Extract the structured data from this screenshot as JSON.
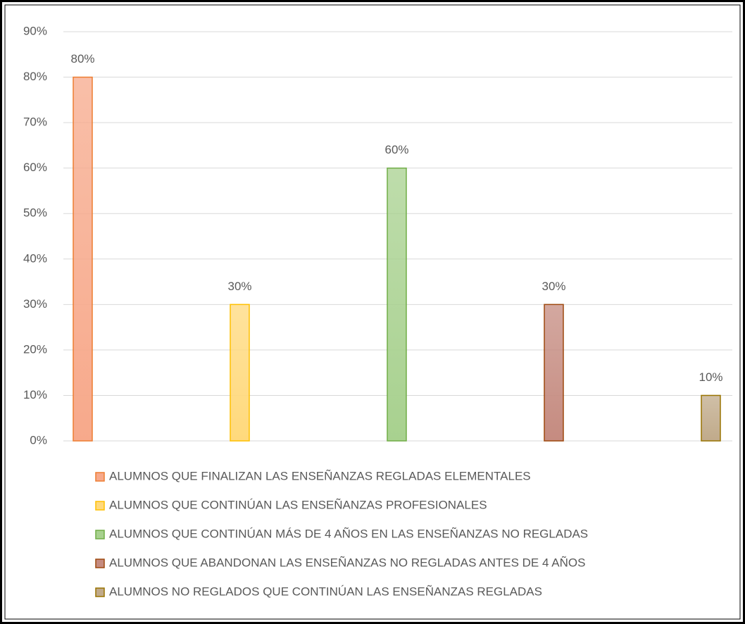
{
  "chart_data": {
    "type": "bar",
    "categories": [
      null
    ],
    "series": [
      {
        "name": "ALUMNOS QUE FINALIZAN LAS ENSEÑANZAS REGLADAS ELEMENTALES",
        "color": "#ed7d31",
        "fill": "#f7a98b",
        "values": [
          80
        ],
        "value_labels": [
          "80%"
        ]
      },
      {
        "name": "ALUMNOS QUE CONTINÚAN LAS ENSEÑANZAS PROFESIONALES",
        "color": "#ffc000",
        "fill": "#ffd97c",
        "values": [
          30
        ],
        "value_labels": [
          "30%"
        ]
      },
      {
        "name": "ALUMNOS QUE CONTINÚAN MÁS DE 4 AÑOS EN LAS ENSEÑANZAS NO REGLADAS",
        "color": "#70ad47",
        "fill": "#a8d18f",
        "values": [
          60
        ],
        "value_labels": [
          "60%"
        ]
      },
      {
        "name": "ALUMNOS QUE ABANDONAN LAS ENSEÑANZAS NO REGLADAS ANTES DE 4 AÑOS",
        "color": "#9e480e",
        "fill": "#c58b80",
        "values": [
          30
        ],
        "value_labels": [
          "30%"
        ]
      },
      {
        "name": "ALUMNOS NO REGLADOS QUE CONTINÚAN LAS ENSEÑANZAS REGLADAS",
        "color": "#997300",
        "fill": "#c0aa8a",
        "values": [
          10
        ],
        "value_labels": [
          "10%"
        ]
      }
    ],
    "ylim": [
      0,
      90
    ],
    "yticks": [
      {
        "value": 0,
        "label": "0%"
      },
      {
        "value": 10,
        "label": "10%"
      },
      {
        "value": 20,
        "label": "20%"
      },
      {
        "value": 30,
        "label": "30%"
      },
      {
        "value": 40,
        "label": "40%"
      },
      {
        "value": 50,
        "label": "50%"
      },
      {
        "value": 60,
        "label": "60%"
      },
      {
        "value": 70,
        "label": "70%"
      },
      {
        "value": 80,
        "label": "80%"
      },
      {
        "value": 90,
        "label": "90%"
      }
    ],
    "grid": true,
    "legend": "bottom"
  }
}
